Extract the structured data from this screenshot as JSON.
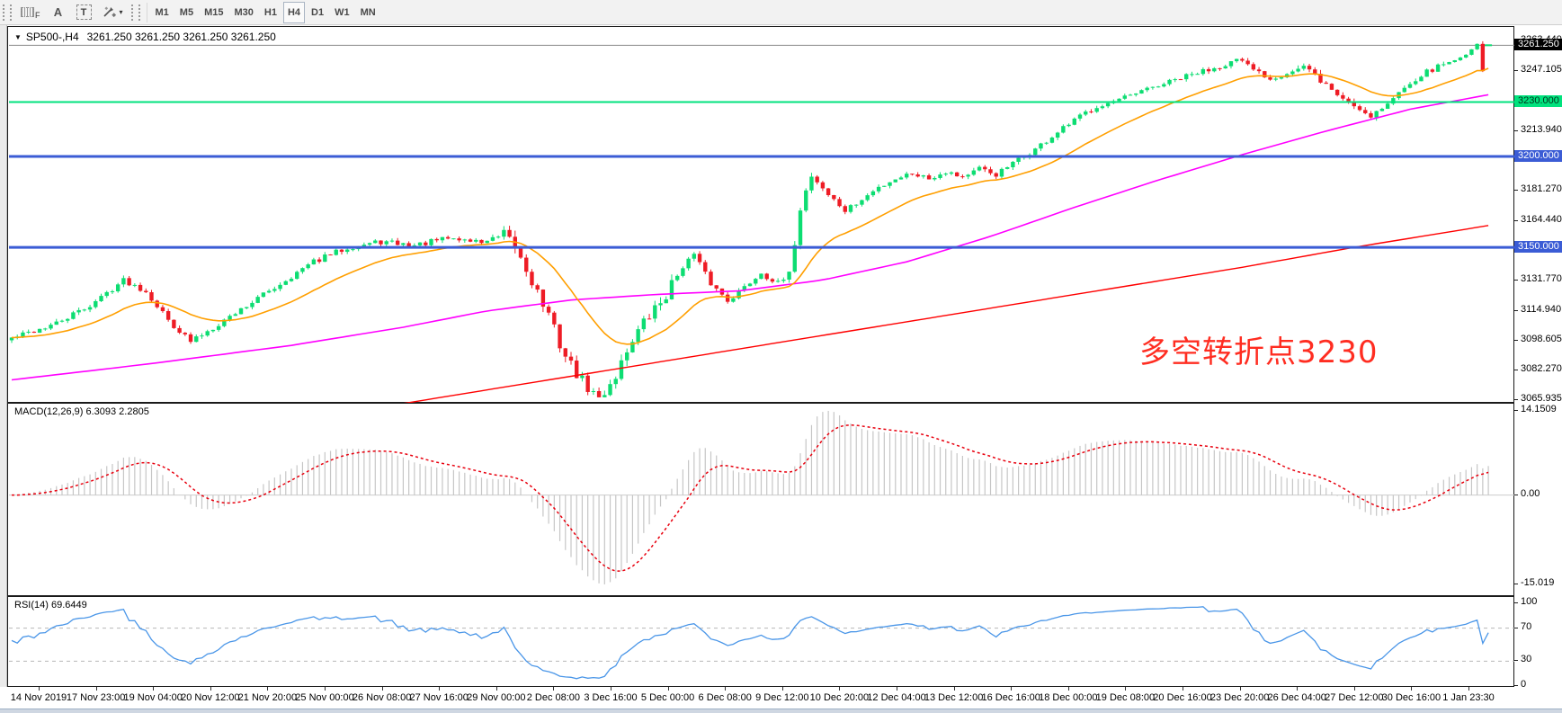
{
  "toolbar": {
    "tools": [
      {
        "id": "fibonacci-grid-tool",
        "label": "F"
      },
      {
        "id": "text-tool",
        "label": "A"
      },
      {
        "id": "text-label-tool",
        "label": "T"
      },
      {
        "id": "arrow-style-tool",
        "label": "▾"
      }
    ],
    "timeframes": [
      "M1",
      "M5",
      "M15",
      "M30",
      "H1",
      "H4",
      "D1",
      "W1",
      "MN"
    ],
    "active_timeframe": "H4"
  },
  "chart": {
    "title_symbol": "SP500-,H4",
    "title_quote": "3261.250 3261.250 3261.250 3261.250",
    "macd_label": "MACD(12,26,9) 6.3093 2.2805",
    "rsi_label": "RSI(14) 69.6449",
    "annotation_text": "多空转折点3230",
    "annotation_color": "#ff2d21"
  },
  "price_axis": {
    "ticks": [
      "3263.440",
      "3247.105",
      "3213.940",
      "3197.805",
      "3181.270",
      "3164.440",
      "3148.105",
      "3131.770",
      "3114.940",
      "3098.605",
      "3082.270",
      "3065.935"
    ],
    "badges": [
      {
        "value": "3261.250",
        "bg": "#000000",
        "fg": "#ffffff",
        "name": "current-price-badge"
      },
      {
        "value": "3230.000",
        "bg": "#00e27d",
        "fg": "#00331c",
        "name": "level-badge-3230"
      },
      {
        "value": "3200.000",
        "bg": "#3b5cd5",
        "fg": "#ffffff",
        "name": "level-badge-3200"
      },
      {
        "value": "3150.000",
        "bg": "#3b5cd5",
        "fg": "#ffffff",
        "name": "level-badge-3150"
      }
    ],
    "macd_ticks": [
      "14.1509",
      "0.00",
      "-15.019"
    ],
    "rsi_ticks": [
      "100",
      "70",
      "30",
      "0"
    ]
  },
  "time_axis": {
    "labels": [
      "14 Nov 2019",
      "17 Nov 23:00",
      "19 Nov 04:00",
      "20 Nov 12:00",
      "21 Nov 20:00",
      "25 Nov 00:00",
      "26 Nov 08:00",
      "27 Nov 16:00",
      "29 Nov 00:00",
      "2 Dec 08:00",
      "3 Dec 16:00",
      "5 Dec 00:00",
      "6 Dec 08:00",
      "9 Dec 12:00",
      "10 Dec 20:00",
      "12 Dec 04:00",
      "13 Dec 12:00",
      "16 Dec 16:00",
      "18 Dec 00:00",
      "19 Dec 08:00",
      "20 Dec 16:00",
      "23 Dec 20:00",
      "26 Dec 04:00",
      "27 Dec 12:00",
      "30 Dec 16:00",
      "1 Jan 23:30"
    ]
  },
  "chart_data": {
    "type": "candlestick",
    "symbol": "SP500",
    "timeframe": "H4",
    "current_ohlc": {
      "open": 3261.25,
      "high": 3261.25,
      "low": 3261.25,
      "close": 3261.25
    },
    "bars": 265,
    "y_range": {
      "bottom": 3064.4,
      "top": 3271.4
    },
    "close_waypoints": [
      [
        0,
        3100
      ],
      [
        8,
        3108
      ],
      [
        14,
        3118
      ],
      [
        20,
        3132
      ],
      [
        24,
        3126
      ],
      [
        28,
        3110
      ],
      [
        32,
        3098
      ],
      [
        36,
        3106
      ],
      [
        42,
        3118
      ],
      [
        48,
        3130
      ],
      [
        54,
        3142
      ],
      [
        60,
        3150
      ],
      [
        66,
        3153
      ],
      [
        72,
        3151
      ],
      [
        78,
        3155
      ],
      [
        84,
        3153
      ],
      [
        88,
        3156
      ],
      [
        90,
        3150
      ],
      [
        93,
        3132
      ],
      [
        96,
        3112
      ],
      [
        99,
        3090
      ],
      [
        102,
        3076
      ],
      [
        105,
        3066
      ],
      [
        108,
        3080
      ],
      [
        111,
        3100
      ],
      [
        114,
        3112
      ],
      [
        117,
        3124
      ],
      [
        120,
        3140
      ],
      [
        122,
        3146
      ],
      [
        125,
        3130
      ],
      [
        128,
        3121
      ],
      [
        131,
        3128
      ],
      [
        134,
        3136
      ],
      [
        137,
        3130
      ],
      [
        139,
        3134
      ],
      [
        141,
        3172
      ],
      [
        143,
        3190
      ],
      [
        146,
        3179
      ],
      [
        149,
        3170
      ],
      [
        152,
        3176
      ],
      [
        155,
        3183
      ],
      [
        158,
        3188
      ],
      [
        161,
        3191
      ],
      [
        164,
        3188
      ],
      [
        167,
        3192
      ],
      [
        170,
        3189
      ],
      [
        173,
        3193
      ],
      [
        176,
        3190
      ],
      [
        179,
        3196
      ],
      [
        183,
        3204
      ],
      [
        187,
        3213
      ],
      [
        191,
        3222
      ],
      [
        194,
        3228
      ],
      [
        197,
        3230
      ],
      [
        200,
        3233
      ],
      [
        204,
        3238
      ],
      [
        208,
        3242
      ],
      [
        212,
        3246
      ],
      [
        216,
        3250
      ],
      [
        219,
        3253
      ],
      [
        222,
        3248
      ],
      [
        225,
        3243
      ],
      [
        228,
        3246
      ],
      [
        231,
        3249
      ],
      [
        234,
        3242
      ],
      [
        237,
        3234
      ],
      [
        240,
        3228
      ],
      [
        243,
        3223
      ],
      [
        246,
        3229
      ],
      [
        248,
        3235
      ],
      [
        250,
        3241
      ],
      [
        252,
        3245
      ],
      [
        254,
        3248
      ],
      [
        256,
        3251
      ],
      [
        258,
        3253
      ],
      [
        260,
        3256
      ],
      [
        261,
        3259
      ],
      [
        262,
        3262
      ],
      [
        263,
        3247
      ],
      [
        264,
        3261.25
      ]
    ],
    "volatility_zones": [
      {
        "from": 88,
        "to": 118,
        "mult": 2.3
      },
      {
        "from": 139,
        "to": 144,
        "mult": 1.7
      },
      {
        "from": 230,
        "to": 244,
        "mult": 1.4
      },
      {
        "from": 257,
        "to": 264,
        "mult": 0
      }
    ],
    "wick_overrides": [
      {
        "bar": 263,
        "high": 3263.44,
        "low": 3246.5
      }
    ],
    "seed": 42,
    "base_wiggle": 1.3,
    "candle_up_color": "#0ddd72",
    "candle_down_color": "#ee1c25",
    "levels": [
      {
        "price": 3230.0,
        "color": "#00e27d",
        "width": 2
      },
      {
        "price": 3200.0,
        "color": "#3b5cd5",
        "width": 3
      },
      {
        "price": 3150.0,
        "color": "#3b5cd5",
        "width": 3
      }
    ],
    "current_price_line": {
      "price": 3261.25,
      "color": "#888888"
    },
    "moving_averages": [
      {
        "name": "fast-ma",
        "color": "#ff9f00",
        "type": "ema",
        "period": 21
      },
      {
        "name": "mid-ma",
        "color": "#ff00ff",
        "type": "waypoints",
        "points": [
          [
            0,
            3077
          ],
          [
            25,
            3086
          ],
          [
            50,
            3096
          ],
          [
            70,
            3106
          ],
          [
            85,
            3115
          ],
          [
            100,
            3121
          ],
          [
            115,
            3124
          ],
          [
            130,
            3126
          ],
          [
            145,
            3132
          ],
          [
            160,
            3142
          ],
          [
            175,
            3156
          ],
          [
            190,
            3172
          ],
          [
            205,
            3187
          ],
          [
            220,
            3201
          ],
          [
            235,
            3214
          ],
          [
            250,
            3226
          ],
          [
            264,
            3234
          ]
        ]
      },
      {
        "name": "slow-ma",
        "color": "#ff0000",
        "type": "waypoints",
        "points": [
          [
            70,
            3064
          ],
          [
            110,
            3084
          ],
          [
            150,
            3104
          ],
          [
            190,
            3124
          ],
          [
            220,
            3139
          ],
          [
            240,
            3150
          ],
          [
            264,
            3162
          ]
        ]
      }
    ],
    "macd": {
      "params": [
        12,
        26,
        9
      ],
      "current_macd": 6.3093,
      "current_signal": 2.2805,
      "display_max": 14.1509,
      "display_min": -15.019,
      "histogram_color": "#c6c6c6",
      "signal_color": "#e8000e"
    },
    "rsi": {
      "period": 14,
      "current": 69.6449,
      "levels": [
        70,
        30
      ],
      "color": "#4a96e8",
      "range": [
        0,
        100
      ]
    }
  }
}
